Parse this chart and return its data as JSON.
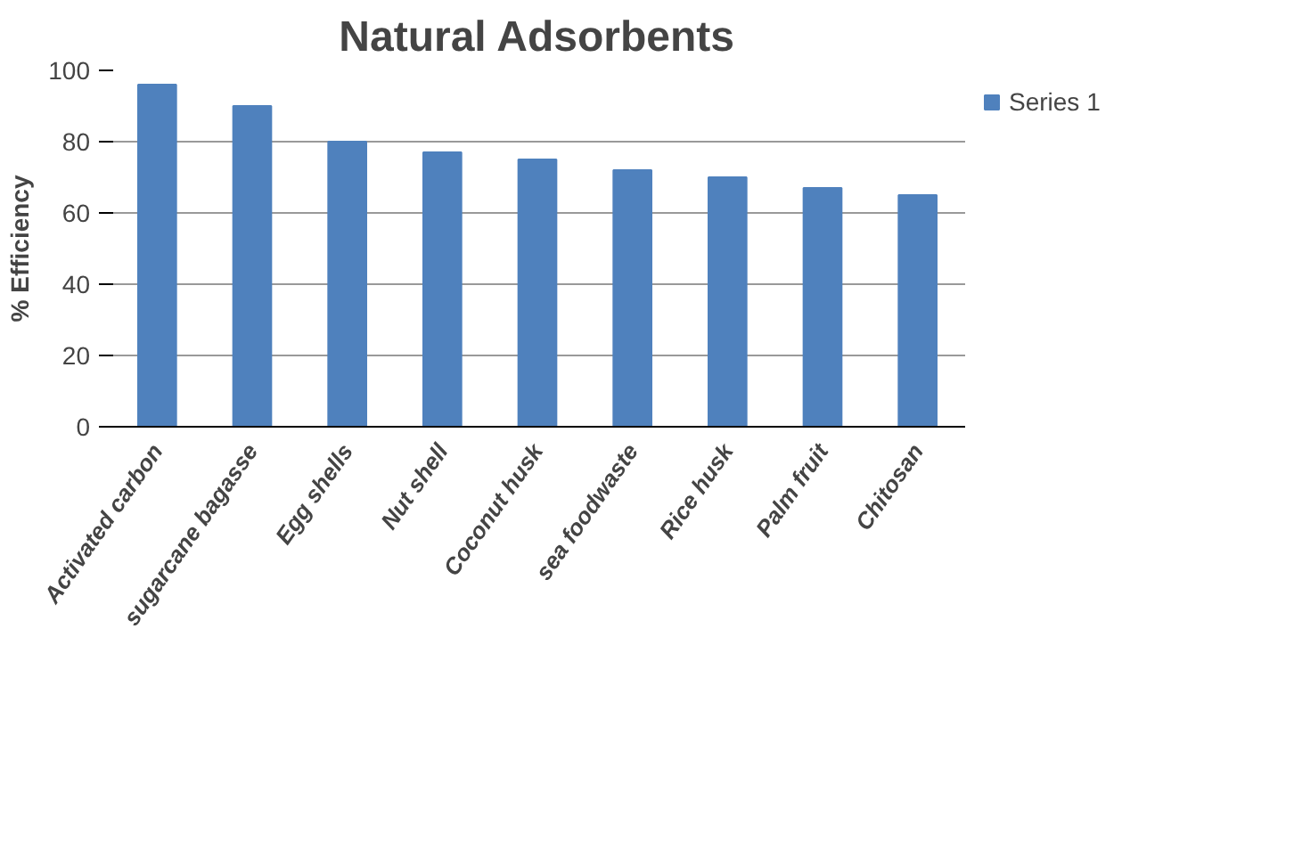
{
  "chart_data": {
    "type": "bar",
    "title": "Natural Adsorbents",
    "ylabel": "% Efficiency",
    "categories": [
      "Activated carbon",
      "sugarcane bagasse",
      "Egg shells",
      "Nut shell",
      "Coconut husk",
      "sea foodwaste",
      "Rice husk",
      "Palm fruit",
      "Chitosan"
    ],
    "series": [
      {
        "name": "Series 1",
        "color": "#4f81bd",
        "values": [
          96,
          90,
          80,
          77,
          75,
          72,
          70,
          67,
          65
        ]
      }
    ],
    "ylim": [
      0,
      100
    ],
    "yticks": [
      0,
      20,
      40,
      60,
      80,
      100
    ],
    "grid": "y",
    "legend": "right"
  }
}
